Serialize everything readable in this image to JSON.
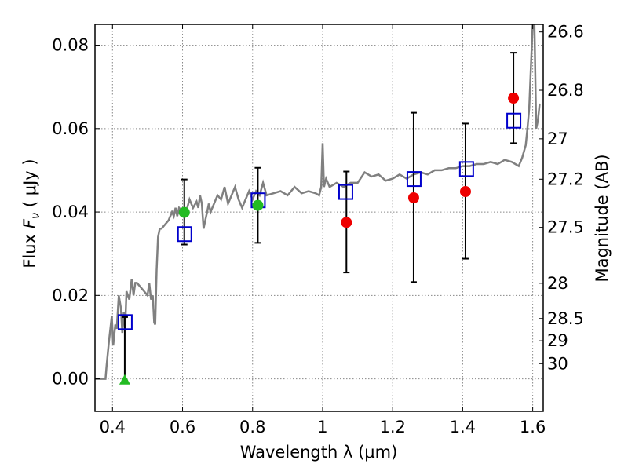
{
  "chart_data": {
    "type": "scatter",
    "title": "",
    "xlabel": "Wavelength  λ (μm)",
    "ylabel": "Flux  F_ν  ( μJy )",
    "ylabel_parts": {
      "prefix": "Flux  ",
      "symbol": "F",
      "subscript": "ν",
      "suffix": " ( μJy )"
    },
    "ylabel_right": "Magnitude (AB)",
    "xlim": [
      0.35,
      1.63
    ],
    "ylim": [
      -0.0078,
      0.085
    ],
    "grid": true,
    "x_ticks": [
      {
        "value": 0.4,
        "label": "0.4"
      },
      {
        "value": 0.6,
        "label": "0.6"
      },
      {
        "value": 0.8,
        "label": "0.8"
      },
      {
        "value": 1.0,
        "label": "1"
      },
      {
        "value": 1.2,
        "label": "1.2"
      },
      {
        "value": 1.4,
        "label": "1.4"
      },
      {
        "value": 1.6,
        "label": "1.6"
      }
    ],
    "y_ticks": [
      {
        "value": 0.0,
        "label": "0.00"
      },
      {
        "value": 0.02,
        "label": "0.02"
      },
      {
        "value": 0.04,
        "label": "0.04"
      },
      {
        "value": 0.06,
        "label": "0.06"
      },
      {
        "value": 0.08,
        "label": "0.08"
      }
    ],
    "mag_ticks": [
      {
        "mag": 26.6,
        "label": "26.6"
      },
      {
        "mag": 26.8,
        "label": "26.8"
      },
      {
        "mag": 27.0,
        "label": "27"
      },
      {
        "mag": 27.2,
        "label": "27.2"
      },
      {
        "mag": 27.5,
        "label": "27.5"
      },
      {
        "mag": 28.0,
        "label": "28"
      },
      {
        "mag": 28.5,
        "label": "28.5"
      },
      {
        "mag": 29.0,
        "label": "29"
      },
      {
        "mag": 30.0,
        "label": "30"
      }
    ],
    "colors": {
      "model": "#808080",
      "model_points": "#0000cc",
      "detections": "#ee0000",
      "green_points": "#22bb22",
      "errorbar": "#000000",
      "grid": "#888888"
    },
    "model_spectrum": {
      "x": [
        0.35,
        0.38,
        0.383,
        0.39,
        0.398,
        0.402,
        0.408,
        0.412,
        0.418,
        0.424,
        0.428,
        0.432,
        0.436,
        0.44,
        0.448,
        0.455,
        0.46,
        0.465,
        0.47,
        0.48,
        0.49,
        0.5,
        0.505,
        0.51,
        0.515,
        0.519,
        0.522,
        0.526,
        0.53,
        0.535,
        0.54,
        0.55,
        0.56,
        0.57,
        0.575,
        0.58,
        0.585,
        0.59,
        0.6,
        0.61,
        0.62,
        0.63,
        0.64,
        0.645,
        0.65,
        0.655,
        0.66,
        0.665,
        0.67,
        0.675,
        0.68,
        0.69,
        0.7,
        0.71,
        0.72,
        0.73,
        0.74,
        0.75,
        0.76,
        0.77,
        0.78,
        0.79,
        0.8,
        0.81,
        0.82,
        0.83,
        0.84,
        0.86,
        0.88,
        0.9,
        0.92,
        0.94,
        0.96,
        0.98,
        0.99,
        0.996,
        1.0,
        1.004,
        1.01,
        1.02,
        1.04,
        1.06,
        1.08,
        1.1,
        1.12,
        1.14,
        1.16,
        1.18,
        1.2,
        1.22,
        1.24,
        1.26,
        1.28,
        1.3,
        1.32,
        1.34,
        1.36,
        1.38,
        1.4,
        1.42,
        1.44,
        1.46,
        1.48,
        1.5,
        1.52,
        1.54,
        1.56,
        1.57,
        1.58,
        1.585,
        1.59,
        1.595,
        1.6,
        1.605,
        1.61,
        1.615,
        1.62
      ],
      "y": [
        0.0,
        0.0,
        0.003,
        0.009,
        0.015,
        0.008,
        0.013,
        0.012,
        0.02,
        0.017,
        0.011,
        0.016,
        0.012,
        0.021,
        0.019,
        0.024,
        0.02,
        0.023,
        0.023,
        0.022,
        0.021,
        0.02,
        0.023,
        0.019,
        0.02,
        0.0135,
        0.013,
        0.026,
        0.034,
        0.036,
        0.036,
        0.037,
        0.038,
        0.04,
        0.039,
        0.041,
        0.039,
        0.041,
        0.04,
        0.04,
        0.043,
        0.041,
        0.0425,
        0.041,
        0.044,
        0.042,
        0.036,
        0.038,
        0.04,
        0.042,
        0.04,
        0.042,
        0.044,
        0.043,
        0.046,
        0.042,
        0.044,
        0.046,
        0.043,
        0.041,
        0.043,
        0.045,
        0.043,
        0.045,
        0.044,
        0.047,
        0.044,
        0.0445,
        0.045,
        0.044,
        0.046,
        0.0445,
        0.045,
        0.0445,
        0.044,
        0.046,
        0.0565,
        0.046,
        0.048,
        0.046,
        0.047,
        0.046,
        0.047,
        0.047,
        0.0495,
        0.0485,
        0.049,
        0.0475,
        0.048,
        0.049,
        0.048,
        0.049,
        0.0495,
        0.049,
        0.05,
        0.05,
        0.0505,
        0.0505,
        0.051,
        0.051,
        0.0515,
        0.0515,
        0.052,
        0.0515,
        0.0525,
        0.052,
        0.051,
        0.053,
        0.056,
        0.06,
        0.065,
        0.075,
        0.085,
        0.085,
        0.06,
        0.062,
        0.066
      ]
    },
    "series": [
      {
        "marker": "square",
        "x": [
          0.435,
          0.605,
          0.815,
          1.065,
          1.26,
          1.41,
          1.545
        ],
        "y": [
          0.0136,
          0.0347,
          0.0428,
          0.0448,
          0.0479,
          0.0503,
          0.0619
        ]
      },
      {
        "marker": "circle",
        "x": [
          1.068,
          1.26,
          1.408,
          1.545
        ],
        "y": [
          0.0375,
          0.0434,
          0.0449,
          0.0673
        ],
        "yerr_low": [
          0.0255,
          0.0232,
          0.0288,
          0.0565
        ],
        "yerr_high": [
          0.0497,
          0.0638,
          0.0612,
          0.0782
        ]
      },
      {
        "marker": "circle",
        "x": [
          0.605,
          0.815
        ],
        "y": [
          0.0399,
          0.0416
        ],
        "yerr_low": [
          0.0322,
          0.0326
        ],
        "yerr_high": [
          0.0478,
          0.0506
        ]
      },
      {
        "marker": "triangle",
        "x": [
          0.435
        ],
        "y": [
          -0.0004
        ],
        "yerr_low": [
          -0.0004
        ],
        "yerr_high": [
          0.0148
        ]
      }
    ]
  }
}
